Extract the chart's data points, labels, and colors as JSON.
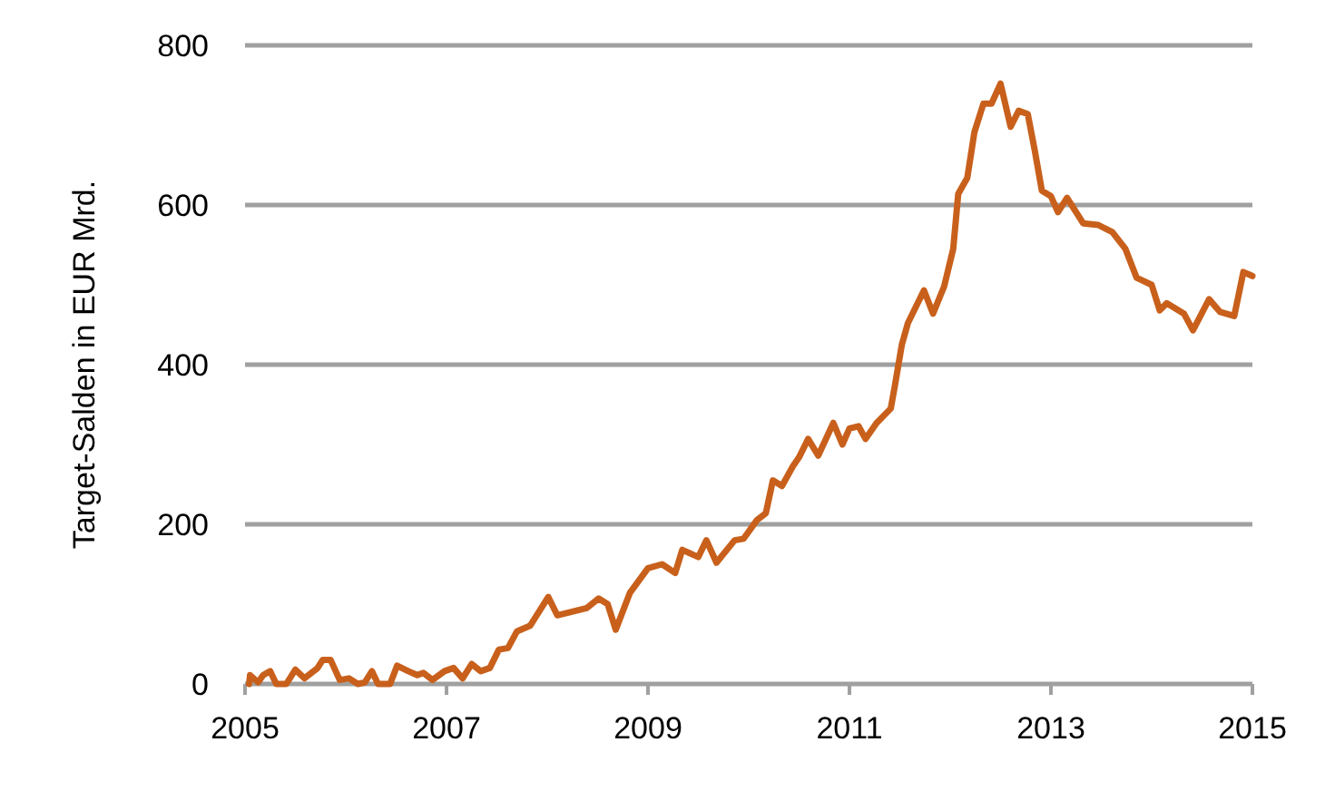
{
  "chart_data": {
    "type": "line",
    "ylabel": "Target-Salden in EUR Mrd.",
    "x": [
      2005.04,
      2005.05,
      2005.13,
      2005.18,
      2005.25,
      2005.31,
      2005.41,
      2005.5,
      2005.59,
      2005.72,
      2005.77,
      2005.85,
      2005.94,
      2006.03,
      2006.12,
      2006.19,
      2006.26,
      2006.32,
      2006.44,
      2006.51,
      2006.62,
      2006.71,
      2006.77,
      2006.86,
      2006.98,
      2007.07,
      2007.16,
      2007.25,
      2007.34,
      2007.43,
      2007.52,
      2007.61,
      2007.7,
      2007.83,
      2008.01,
      2008.1,
      2008.39,
      2008.51,
      2008.6,
      2008.68,
      2008.82,
      2009.0,
      2009.14,
      2009.27,
      2009.34,
      2009.5,
      2009.58,
      2009.68,
      2009.86,
      2009.95,
      2010.08,
      2010.17,
      2010.24,
      2010.33,
      2010.44,
      2010.5,
      2010.59,
      2010.69,
      2010.84,
      2010.93,
      2011.0,
      2011.09,
      2011.16,
      2011.27,
      2011.41,
      2011.45,
      2011.52,
      2011.58,
      2011.74,
      2011.83,
      2011.94,
      2012.03,
      2012.08,
      2012.17,
      2012.24,
      2012.33,
      2012.41,
      2012.5,
      2012.6,
      2012.68,
      2012.77,
      2012.84,
      2012.91,
      2013.0,
      2013.07,
      2013.16,
      2013.32,
      2013.47,
      2013.61,
      2013.74,
      2013.85,
      2014.0,
      2014.08,
      2014.15,
      2014.32,
      2014.41,
      2014.57,
      2014.68,
      2014.82,
      2014.91,
      2015.0
    ],
    "series": [
      {
        "color": "#c8601c",
        "values": [
          0,
          11,
          2,
          11,
          16,
          0,
          0,
          18,
          7,
          20,
          30,
          30,
          5,
          7,
          0,
          2,
          16,
          0,
          0,
          23,
          16,
          11,
          14,
          5,
          16,
          20,
          7,
          25,
          16,
          20,
          43,
          45,
          66,
          73,
          109,
          86,
          95,
          107,
          100,
          68,
          114,
          145,
          150,
          139,
          168,
          159,
          180,
          152,
          180,
          182,
          205,
          214,
          255,
          248,
          273,
          284,
          307,
          286,
          327,
          300,
          320,
          323,
          307,
          327,
          345,
          373,
          425,
          452,
          493,
          464,
          498,
          545,
          614,
          634,
          691,
          727,
          727,
          752,
          698,
          718,
          714,
          668,
          618,
          611,
          591,
          609,
          577,
          575,
          566,
          545,
          509,
          500,
          468,
          477,
          464,
          443,
          482,
          466,
          461,
          516,
          511
        ]
      }
    ],
    "xlim": [
      2005,
      2015
    ],
    "xticks": [
      2005,
      2007,
      2009,
      2011,
      2013,
      2015
    ],
    "ylim": [
      0,
      800
    ],
    "yticks": [
      0,
      200,
      400,
      600,
      800
    ],
    "grid": "y",
    "marker": "none",
    "line_style": "solid"
  }
}
